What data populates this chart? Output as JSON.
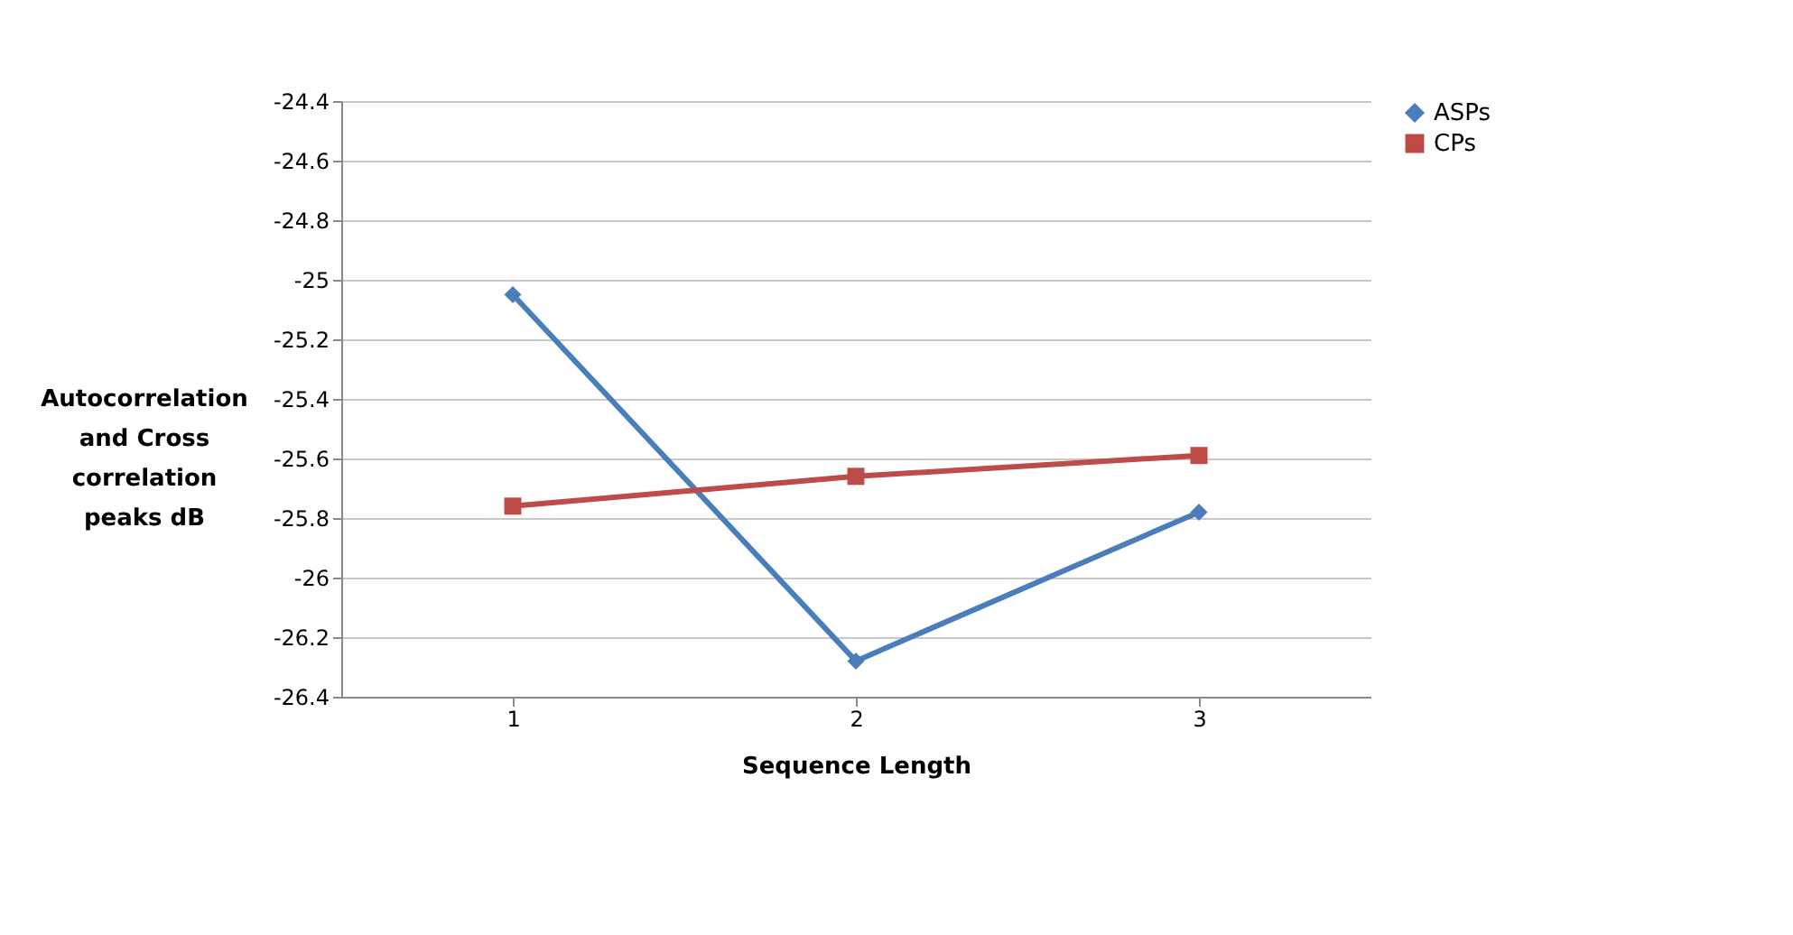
{
  "chart_data": {
    "type": "line",
    "xlabel": "Sequence Length",
    "ylabel": "Autocorrelation and Cross correlation peaks dB",
    "categories": [
      "1",
      "2",
      "3"
    ],
    "series": [
      {
        "name": "ASPs",
        "color": "#4a7ebb",
        "marker": "diamond",
        "values": [
          -25.05,
          -26.28,
          -25.78
        ]
      },
      {
        "name": "CPs",
        "color": "#be4b48",
        "marker": "square",
        "values": [
          -25.76,
          -25.66,
          -25.59
        ]
      }
    ],
    "ylim": [
      -26.4,
      -24.4
    ],
    "yticks": [
      -24.4,
      -24.6,
      -24.8,
      -25,
      -25.2,
      -25.4,
      -25.6,
      -25.8,
      -26,
      -26.2,
      -26.4
    ],
    "grid": "y",
    "legend": "right"
  }
}
